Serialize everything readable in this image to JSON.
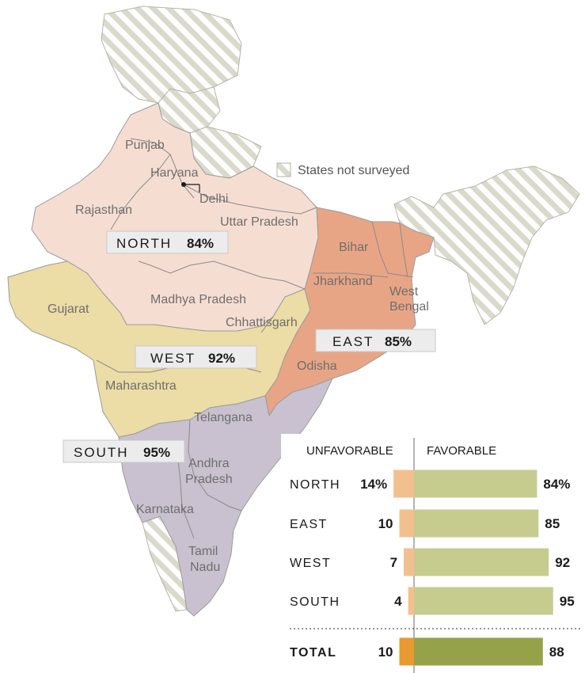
{
  "colors": {
    "north": "#f6ddd2",
    "east": "#e8a585",
    "west": "#ecdca5",
    "south": "#c9c1cf",
    "unsurveyed_stripe": "#d9d9cc",
    "unfavorable": "#f2c08e",
    "unfavorable_total": "#e8992f",
    "favorable": "#c5cc8e",
    "favorable_total": "#96a24a"
  },
  "legend": {
    "not_surveyed": "States not surveyed"
  },
  "states": {
    "punjab": "Punjab",
    "haryana": "Haryana",
    "delhi": "Delhi",
    "rajasthan": "Rajasthan",
    "uttar_pradesh": "Uttar Pradesh",
    "bihar": "Bihar",
    "jharkhand": "Jharkhand",
    "west_bengal_1": "West",
    "west_bengal_2": "Bengal",
    "gujarat": "Gujarat",
    "madhya_pradesh": "Madhya Pradesh",
    "chhattisgarh": "Chhattisgarh",
    "odisha": "Odisha",
    "maharashtra": "Maharashtra",
    "telangana": "Telangana",
    "andhra_1": "Andhra",
    "andhra_2": "Pradesh",
    "karnataka": "Karnataka",
    "tamil_1": "Tamil",
    "tamil_2": "Nadu"
  },
  "region_labels": {
    "north": {
      "name": "NORTH",
      "value": "84%"
    },
    "east": {
      "name": "EAST",
      "value": "85%"
    },
    "west": {
      "name": "WEST",
      "value": "92%"
    },
    "south": {
      "name": "SOUTH",
      "value": "95%"
    }
  },
  "chart_data": {
    "type": "bar",
    "columns": [
      "UNFAVORABLE",
      "FAVORABLE"
    ],
    "categories": [
      "NORTH",
      "EAST",
      "WEST",
      "SOUTH",
      "TOTAL"
    ],
    "unfavorable": [
      14,
      10,
      7,
      4,
      10
    ],
    "favorable": [
      84,
      85,
      92,
      95,
      88
    ],
    "unfavorable_labels": [
      "14%",
      "10",
      "7",
      "4",
      "10"
    ],
    "favorable_labels": [
      "84%",
      "85",
      "92",
      "95",
      "88"
    ]
  }
}
